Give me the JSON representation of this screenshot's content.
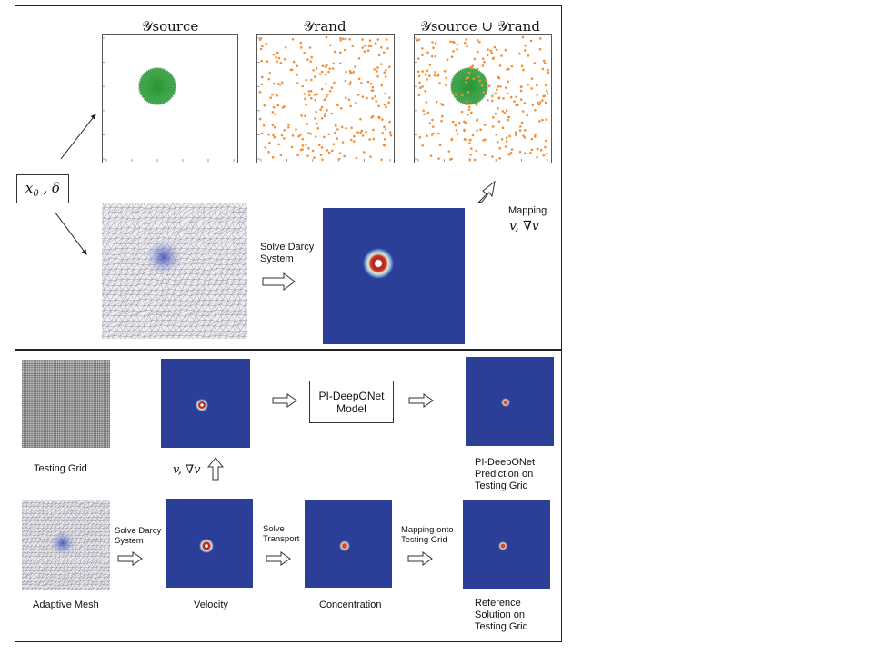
{
  "top": {
    "plot_titles": {
      "source": "𝒴source",
      "rand": "𝒴rand",
      "union": "𝒴source ∪ 𝒴rand"
    },
    "input_params": "x0 , δ",
    "solve_darcy": "Solve Darcy System",
    "mapping": "Mapping",
    "mapping_vars": "v,  ∇v"
  },
  "bottom": {
    "testing_grid": "Testing Grid",
    "v_gradv": "v,  ∇v",
    "model": "PI-DeepONet Model",
    "prediction": "PI-DeepONet Prediction on Testing Grid",
    "solve_darcy": "Solve Darcy System",
    "solve_transport": "Solve Transport",
    "mapping_onto": "Mapping onto Testing Grid",
    "adaptive_mesh": "Adaptive Mesh",
    "velocity": "Velocity",
    "concentration": "Concentration",
    "reference": "Reference Solution on Testing Grid"
  },
  "colors": {
    "field_blue": "#2b3f99",
    "source_green": "#2e9e3a",
    "rand_orange": "#f0903a",
    "peak_red": "#b51d1d"
  }
}
